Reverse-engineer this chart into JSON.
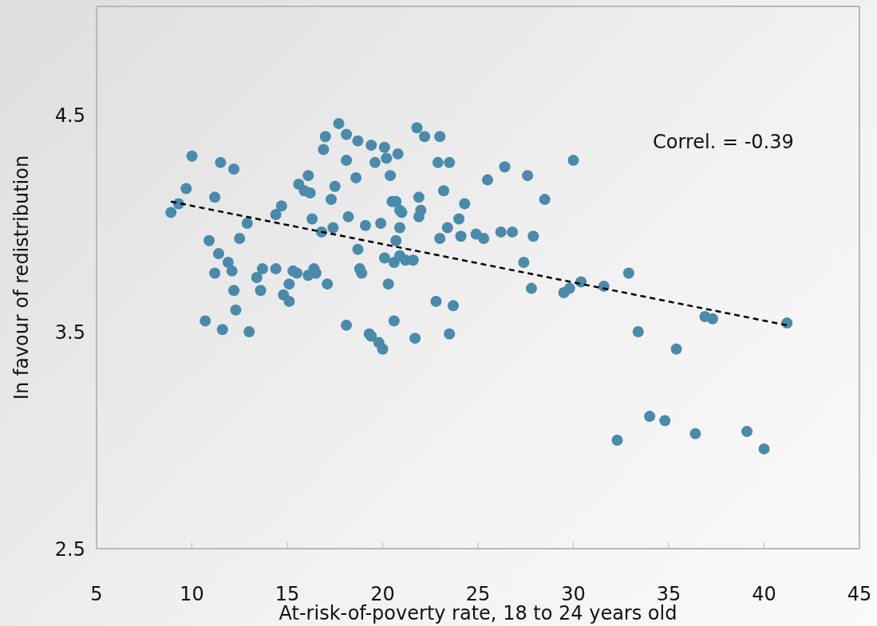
{
  "chart_data": {
    "type": "scatter",
    "xlabel": "At-risk-of-poverty rate, 18 to 24 years old",
    "ylabel": "In favour of redistribution",
    "annotations": [
      "Correl. = -0.39"
    ],
    "xlim": [
      5,
      45
    ],
    "xticks": [
      5,
      10,
      15,
      20,
      25,
      30,
      35,
      40,
      45
    ],
    "ylim": [
      2.5,
      5
    ],
    "yticks": [
      2.5,
      3.5,
      4.5
    ],
    "marker": "circle",
    "series": [
      {
        "type": "scatter",
        "color": "#4a8aab",
        "x": [
          8.9,
          9.3,
          9.7,
          10.0,
          10.9,
          10.7,
          11.2,
          11.2,
          11.5,
          11.4,
          11.6,
          11.9,
          12.1,
          12.2,
          12.2,
          12.3,
          12.5,
          12.9,
          13.0,
          13.4,
          13.6,
          13.7,
          14.4,
          14.4,
          14.7,
          14.8,
          15.1,
          15.1,
          15.3,
          15.5,
          15.6,
          15.9,
          16.1,
          16.1,
          16.2,
          16.3,
          16.4,
          16.5,
          16.8,
          16.9,
          17.0,
          17.1,
          17.3,
          17.4,
          17.5,
          17.7,
          18.1,
          18.1,
          18.1,
          18.2,
          18.6,
          18.7,
          18.7,
          18.8,
          18.9,
          19.1,
          19.3,
          19.4,
          19.4,
          19.6,
          19.8,
          19.9,
          20.0,
          20.1,
          20.1,
          20.2,
          20.3,
          20.4,
          20.5,
          20.6,
          20.6,
          20.7,
          20.7,
          20.8,
          20.9,
          20.9,
          20.9,
          21.0,
          21.2,
          21.6,
          21.7,
          21.8,
          21.9,
          21.9,
          22.0,
          22.2,
          22.8,
          22.9,
          23.0,
          23.0,
          23.2,
          23.4,
          23.5,
          23.5,
          23.7,
          24.0,
          24.1,
          24.3,
          24.9,
          25.3,
          25.5,
          26.2,
          26.4,
          26.8,
          27.4,
          27.6,
          27.8,
          27.9,
          28.5,
          29.5,
          29.8,
          30.0,
          30.4,
          31.6,
          32.9,
          32.3,
          33.4,
          34.0,
          34.8,
          35.4,
          36.4,
          36.9,
          37.3,
          39.1,
          40.0,
          41.2
        ],
        "values": [
          4.05,
          4.09,
          4.16,
          4.31,
          3.92,
          3.55,
          4.12,
          3.77,
          4.28,
          3.86,
          3.51,
          3.82,
          3.78,
          4.25,
          3.69,
          3.6,
          3.93,
          4.0,
          3.5,
          3.75,
          3.69,
          3.79,
          4.04,
          3.79,
          4.08,
          3.67,
          3.72,
          3.64,
          3.78,
          3.77,
          4.18,
          4.15,
          4.22,
          3.76,
          4.14,
          4.02,
          3.79,
          3.77,
          3.96,
          4.34,
          4.4,
          3.72,
          4.11,
          3.98,
          4.17,
          4.46,
          4.41,
          4.29,
          3.53,
          4.03,
          4.21,
          4.38,
          3.88,
          3.79,
          3.77,
          3.99,
          3.49,
          3.48,
          4.36,
          4.28,
          3.45,
          4.0,
          3.42,
          4.35,
          3.84,
          4.3,
          3.72,
          4.22,
          4.1,
          3.55,
          3.82,
          4.1,
          3.92,
          4.32,
          3.98,
          4.06,
          3.85,
          4.05,
          3.83,
          3.83,
          3.47,
          4.44,
          4.03,
          4.12,
          4.06,
          4.4,
          3.64,
          4.28,
          3.93,
          4.4,
          4.15,
          3.98,
          4.28,
          3.49,
          3.62,
          4.02,
          3.94,
          4.09,
          3.95,
          3.93,
          4.2,
          3.96,
          4.26,
          3.96,
          3.82,
          4.22,
          3.7,
          3.94,
          4.11,
          3.68,
          3.7,
          4.29,
          3.73,
          3.71,
          3.77,
          3.0,
          3.5,
          3.11,
          3.09,
          3.42,
          3.03,
          3.57,
          3.56,
          3.04,
          2.96,
          3.54
        ]
      },
      {
        "type": "line",
        "color": "#000000",
        "line_style": "dashed",
        "marker": "none",
        "x": [
          8.9,
          41.2
        ],
        "values": [
          4.1,
          3.53
        ]
      }
    ]
  }
}
